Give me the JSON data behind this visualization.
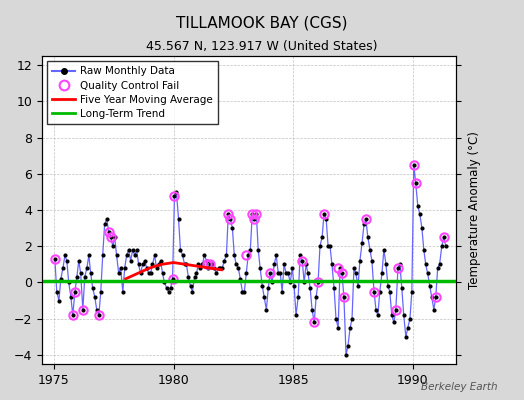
{
  "title": "TILLAMOOK BAY (CGS)",
  "subtitle": "45.567 N, 123.917 W (United States)",
  "ylabel": "Temperature Anomaly (°C)",
  "watermark": "Berkeley Earth",
  "xlim": [
    1974.5,
    1991.8
  ],
  "ylim": [
    -4.5,
    12.5
  ],
  "yticks": [
    -4,
    -2,
    0,
    2,
    4,
    6,
    8,
    10,
    12
  ],
  "xticks": [
    1975,
    1980,
    1985,
    1990
  ],
  "figure_bg_color": "#d8d8d8",
  "plot_bg_color": "#ffffff",
  "raw_color": "#6666ff",
  "raw_marker_color": "#000000",
  "qc_fail_color": "#ff44ff",
  "moving_avg_color": "#ff0000",
  "trend_color": "#00bb00",
  "raw_data_x": [
    1975.04,
    1975.12,
    1975.21,
    1975.29,
    1975.38,
    1975.46,
    1975.54,
    1975.62,
    1975.71,
    1975.79,
    1975.88,
    1975.96,
    1976.04,
    1976.12,
    1976.21,
    1976.29,
    1976.38,
    1976.46,
    1976.54,
    1976.62,
    1976.71,
    1976.79,
    1976.88,
    1976.96,
    1977.04,
    1977.12,
    1977.21,
    1977.29,
    1977.38,
    1977.46,
    1977.54,
    1977.62,
    1977.71,
    1977.79,
    1977.88,
    1977.96,
    1978.04,
    1978.12,
    1978.21,
    1978.29,
    1978.38,
    1978.46,
    1978.54,
    1978.62,
    1978.71,
    1978.79,
    1978.88,
    1978.96,
    1979.04,
    1979.12,
    1979.21,
    1979.29,
    1979.38,
    1979.46,
    1979.54,
    1979.62,
    1979.71,
    1979.79,
    1979.88,
    1979.96,
    1980.04,
    1980.12,
    1980.21,
    1980.29,
    1980.38,
    1980.46,
    1980.54,
    1980.62,
    1980.71,
    1980.79,
    1980.88,
    1980.96,
    1981.04,
    1981.12,
    1981.21,
    1981.29,
    1981.38,
    1981.46,
    1981.54,
    1981.62,
    1981.71,
    1981.79,
    1981.88,
    1981.96,
    1982.04,
    1982.12,
    1982.21,
    1982.29,
    1982.38,
    1982.46,
    1982.54,
    1982.62,
    1982.71,
    1982.79,
    1982.88,
    1982.96,
    1983.04,
    1983.12,
    1983.21,
    1983.29,
    1983.38,
    1983.46,
    1983.54,
    1983.62,
    1983.71,
    1983.79,
    1983.88,
    1983.96,
    1984.04,
    1984.12,
    1984.21,
    1984.29,
    1984.38,
    1984.46,
    1984.54,
    1984.62,
    1984.71,
    1984.79,
    1984.88,
    1984.96,
    1985.04,
    1985.12,
    1985.21,
    1985.29,
    1985.38,
    1985.46,
    1985.54,
    1985.62,
    1985.71,
    1985.79,
    1985.88,
    1985.96,
    1986.04,
    1986.12,
    1986.21,
    1986.29,
    1986.38,
    1986.46,
    1986.54,
    1986.62,
    1986.71,
    1986.79,
    1986.88,
    1986.96,
    1987.04,
    1987.12,
    1987.21,
    1987.29,
    1987.38,
    1987.46,
    1987.54,
    1987.62,
    1987.71,
    1987.79,
    1987.88,
    1987.96,
    1988.04,
    1988.12,
    1988.21,
    1988.29,
    1988.38,
    1988.46,
    1988.54,
    1988.62,
    1988.71,
    1988.79,
    1988.88,
    1988.96,
    1989.04,
    1989.12,
    1989.21,
    1989.29,
    1989.38,
    1989.46,
    1989.54,
    1989.62,
    1989.71,
    1989.79,
    1989.88,
    1989.96,
    1990.04,
    1990.12,
    1990.21,
    1990.29,
    1990.38,
    1990.46,
    1990.54,
    1990.62,
    1990.71,
    1990.79,
    1990.88,
    1990.96,
    1991.04,
    1991.12,
    1991.21,
    1991.29,
    1991.38
  ],
  "raw_data_y": [
    1.3,
    -0.5,
    -1.0,
    0.2,
    0.8,
    1.5,
    1.2,
    0.0,
    -0.8,
    -1.8,
    -0.5,
    0.3,
    1.2,
    0.5,
    -1.5,
    0.3,
    0.8,
    1.5,
    0.5,
    -0.3,
    -0.8,
    -1.5,
    -1.8,
    -0.5,
    1.5,
    3.2,
    3.5,
    2.8,
    2.5,
    2.0,
    2.5,
    1.5,
    0.5,
    0.8,
    -0.5,
    0.8,
    1.5,
    1.8,
    1.2,
    1.8,
    1.5,
    1.8,
    1.0,
    0.5,
    1.0,
    1.2,
    0.8,
    0.5,
    0.5,
    1.0,
    1.5,
    0.8,
    1.0,
    1.2,
    0.5,
    0.0,
    -0.3,
    -0.5,
    -0.3,
    0.2,
    4.8,
    5.0,
    3.5,
    1.8,
    1.5,
    1.0,
    1.0,
    0.3,
    -0.2,
    -0.5,
    0.3,
    0.5,
    1.0,
    0.8,
    1.0,
    1.5,
    1.2,
    0.8,
    1.0,
    1.0,
    0.8,
    0.5,
    0.8,
    0.8,
    0.8,
    1.2,
    1.5,
    3.8,
    3.5,
    3.0,
    1.5,
    1.0,
    0.8,
    0.2,
    -0.5,
    -0.5,
    0.5,
    1.5,
    1.8,
    3.8,
    3.5,
    3.8,
    1.8,
    0.8,
    -0.2,
    -0.8,
    -1.5,
    -0.3,
    0.5,
    0.0,
    1.0,
    1.5,
    0.5,
    0.5,
    -0.5,
    1.0,
    0.5,
    0.5,
    0.0,
    0.8,
    -0.2,
    -1.8,
    -0.8,
    1.5,
    1.2,
    0.0,
    1.0,
    0.5,
    -0.3,
    -1.5,
    -2.2,
    -0.8,
    0.0,
    2.0,
    2.5,
    3.8,
    3.5,
    2.0,
    2.0,
    1.0,
    -0.3,
    -2.0,
    -2.5,
    0.8,
    0.5,
    -0.8,
    -4.0,
    -3.5,
    -2.5,
    -2.0,
    0.8,
    0.5,
    -0.2,
    1.2,
    2.2,
    3.2,
    3.5,
    2.5,
    1.8,
    1.2,
    -0.5,
    -1.5,
    -1.8,
    -0.5,
    0.5,
    1.8,
    1.0,
    -0.2,
    -0.5,
    -1.8,
    -2.2,
    -1.5,
    0.8,
    1.0,
    -0.3,
    -1.8,
    -3.0,
    -2.5,
    -2.0,
    -0.5,
    6.5,
    5.5,
    4.2,
    3.8,
    3.0,
    1.8,
    1.0,
    0.5,
    -0.2,
    -0.8,
    -1.5,
    -0.8,
    0.8,
    1.0,
    2.0,
    2.5,
    2.0
  ],
  "qc_fail_x": [
    1975.04,
    1975.79,
    1975.88,
    1976.21,
    1976.88,
    1977.29,
    1977.38,
    1979.96,
    1980.04,
    1981.38,
    1981.54,
    1982.29,
    1982.38,
    1983.04,
    1983.29,
    1983.38,
    1983.46,
    1984.04,
    1985.38,
    1985.88,
    1986.04,
    1986.29,
    1986.88,
    1987.04,
    1987.12,
    1988.04,
    1988.38,
    1989.29,
    1989.38,
    1990.04,
    1990.12,
    1990.96,
    1991.29
  ],
  "qc_fail_y": [
    1.3,
    -1.8,
    -0.5,
    -1.5,
    -1.8,
    2.8,
    2.5,
    0.2,
    4.8,
    1.0,
    1.0,
    3.8,
    3.5,
    1.5,
    3.8,
    3.5,
    3.8,
    0.5,
    1.2,
    -2.2,
    0.0,
    3.8,
    0.8,
    0.5,
    -0.8,
    3.5,
    -0.5,
    -1.5,
    0.8,
    6.5,
    5.5,
    -0.8,
    2.5
  ],
  "moving_avg_x": [
    1978.0,
    1978.5,
    1979.0,
    1979.5,
    1980.0,
    1980.5,
    1981.0,
    1981.5,
    1982.0
  ],
  "moving_avg_y": [
    0.2,
    0.5,
    0.8,
    1.0,
    1.1,
    1.0,
    0.9,
    0.8,
    0.7
  ],
  "trend_x": [
    1974.5,
    1991.8
  ],
  "trend_y": [
    0.1,
    0.1
  ]
}
